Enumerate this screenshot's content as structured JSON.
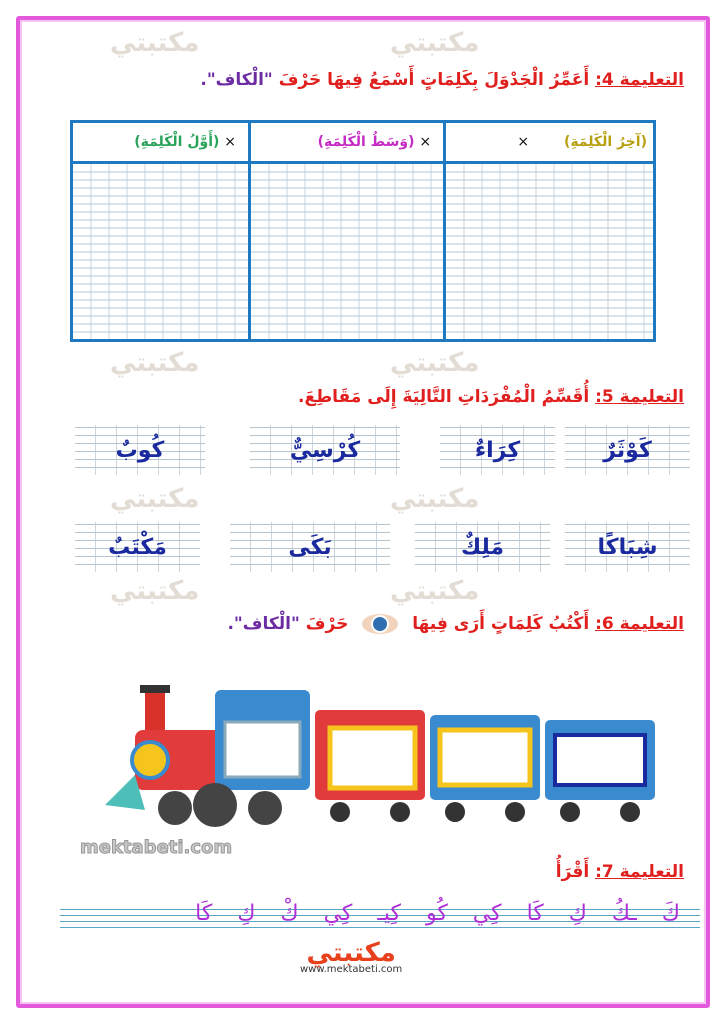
{
  "watermark": {
    "text": "مكتبتي",
    "diagonal": "mektabeti.com"
  },
  "q4": {
    "label": "التعليمة 4:",
    "text": "أَعَمِّرُ الْجَدْوَلَ بِكَلِمَاتٍ أَسْمَعُ فِيهَا حَرْفَ",
    "kaf": "\"الْكاف\".",
    "columns": [
      {
        "label": "(أَوَّلُ الْكَلِمَةِ)",
        "color": "#2aa35a"
      },
      {
        "label": "(وَسَطُ الْكَلِمَةِ)",
        "color": "#c42bc4"
      },
      {
        "label": "(آخِرُ الْكَلِمَةِ)",
        "color": "#b79f12"
      }
    ],
    "mark": "×"
  },
  "q5": {
    "label": "التعليمة 5:",
    "text": "أُقَسِّمُ الْمُفْرَدَاتِ التَّالِيَةَ إِلَى مَقَاطِعَ.",
    "words_row1": [
      "كَوْثَرٌ",
      "كِرَاءٌ",
      "كُرْسِيٌّ",
      "كُوبٌ"
    ],
    "words_row2": [
      "شِبَاكًا",
      "مَلِكٌ",
      "بَكَى",
      "مَكْتَبٌ"
    ]
  },
  "q6": {
    "label": "التعليمة 6:",
    "text": "أَكْتُبُ كَلِمَاتٍ أَرَى فِيهَا",
    "text2": "حَرْفَ",
    "kaf": "\"الْكاف\".",
    "icon": "eye-icon"
  },
  "q7": {
    "label": "التعليمة 7:",
    "text": "أَقْرَأُ",
    "letters": "كَ ـكُ كِ كَا كِي كُو كِيـ كِي كْ كِ كَا"
  },
  "footer": {
    "logo": "مكتبتي",
    "url": "www.mektabeti.com"
  },
  "colors": {
    "frame": "#e25adb",
    "title": "#e0201e",
    "table": "#1f79c0",
    "words": "#1a2a9e",
    "letters": "#b12fd6"
  }
}
